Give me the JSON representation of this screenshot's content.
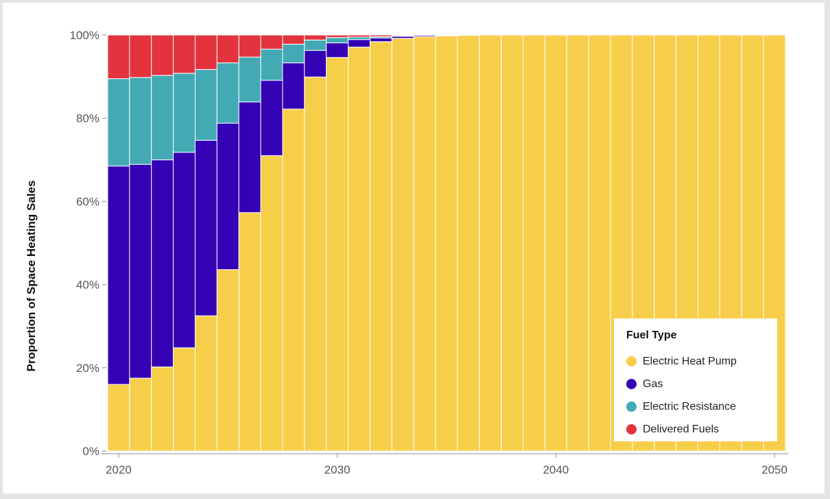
{
  "chart_data": {
    "type": "bar",
    "stacked": true,
    "title": "",
    "xlabel": "",
    "ylabel": "Proportion of Space Heating Sales",
    "ylim": [
      0,
      100
    ],
    "y_ticks": [
      "0%",
      "20%",
      "40%",
      "60%",
      "80%",
      "100%"
    ],
    "x_ticks": [
      {
        "value": 2020,
        "label": "2020"
      },
      {
        "value": 2030,
        "label": "2030"
      },
      {
        "value": 2040,
        "label": "2040"
      },
      {
        "value": 2050,
        "label": "2050"
      }
    ],
    "grid": false,
    "legend_position": "bottom-right",
    "x": [
      2020,
      2021,
      2022,
      2023,
      2024,
      2025,
      2026,
      2027,
      2028,
      2029,
      2030,
      2031,
      2032,
      2033,
      2034,
      2035,
      2036,
      2037,
      2038,
      2039,
      2040,
      2041,
      2042,
      2043,
      2044,
      2045,
      2046,
      2047,
      2048,
      2049,
      2050
    ],
    "series": [
      {
        "name": "Electric Heat Pump",
        "color": "#f7ce4a",
        "values": [
          16,
          17.5,
          20.2,
          24.8,
          32.5,
          43.6,
          57.3,
          71,
          82.2,
          89.9,
          94.6,
          97.1,
          98.4,
          99.2,
          99.6,
          99.8,
          99.9,
          100,
          100,
          100,
          100,
          100,
          100,
          100,
          100,
          100,
          100,
          100,
          100,
          100,
          100
        ]
      },
      {
        "name": "Gas",
        "color": "#3401b5",
        "values": [
          52.5,
          51.4,
          49.8,
          47,
          42.2,
          35.2,
          26.6,
          18.1,
          11.1,
          6.4,
          3.5,
          1.8,
          0.9,
          0.5,
          0.3,
          0.1,
          0.05,
          0,
          0,
          0,
          0,
          0,
          0,
          0,
          0,
          0,
          0,
          0,
          0,
          0,
          0
        ]
      },
      {
        "name": "Electric Resistance",
        "color": "#43aab5",
        "values": [
          21,
          20.9,
          20.3,
          19,
          17,
          14.5,
          10.8,
          7.5,
          4.5,
          2.5,
          1.3,
          0.6,
          0.3,
          0.15,
          0.05,
          0.05,
          0.03,
          0,
          0,
          0,
          0,
          0,
          0,
          0,
          0,
          0,
          0,
          0,
          0,
          0,
          0
        ]
      },
      {
        "name": "Delivered Fuels",
        "color": "#e3333f",
        "values": [
          10.5,
          10.2,
          9.7,
          9.2,
          8.3,
          6.7,
          5.3,
          3.4,
          2.2,
          1.2,
          0.6,
          0.5,
          0.4,
          0.15,
          0.05,
          0.05,
          0.02,
          0,
          0,
          0,
          0,
          0,
          0,
          0,
          0,
          0,
          0,
          0,
          0,
          0,
          0
        ]
      }
    ]
  },
  "legend": {
    "title": "Fuel Type",
    "items": [
      {
        "label": "Electric Heat Pump",
        "color": "#f7ce4a"
      },
      {
        "label": "Gas",
        "color": "#3401b5"
      },
      {
        "label": "Electric Resistance",
        "color": "#43aab5"
      },
      {
        "label": "Delivered Fuels",
        "color": "#e3333f"
      }
    ]
  }
}
